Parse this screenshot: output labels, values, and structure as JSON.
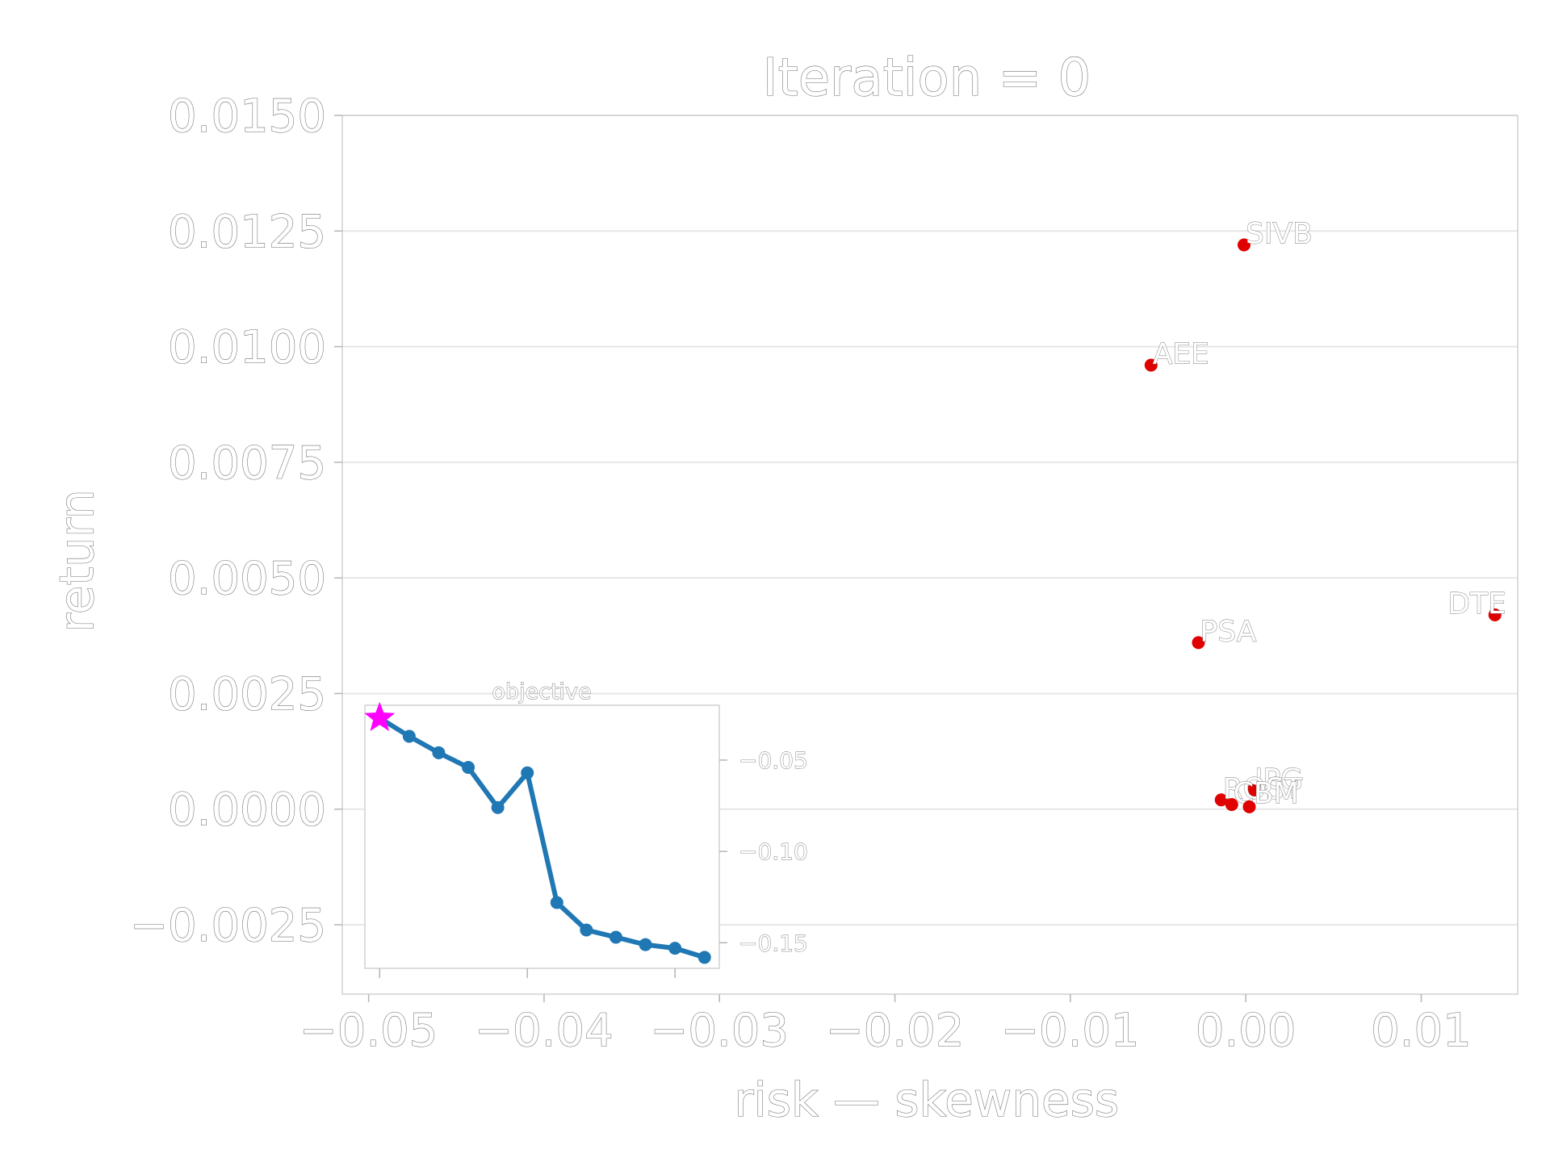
{
  "chart_data": [
    {
      "type": "scatter",
      "title": "Iteration = 0",
      "xlabel": "risk — skewness",
      "ylabel": "return",
      "xlim": [
        -0.0515,
        0.0155
      ],
      "ylim": [
        -0.004,
        0.015
      ],
      "xticks": [
        -0.05,
        -0.04,
        -0.03,
        -0.02,
        -0.01,
        0.0,
        0.01
      ],
      "xtick_labels": [
        "−0.05",
        "−0.04",
        "−0.03",
        "−0.02",
        "−0.01",
        "0.00",
        "0.01"
      ],
      "yticks": [
        -0.0025,
        0.0,
        0.0025,
        0.005,
        0.0075,
        0.01,
        0.0125,
        0.015
      ],
      "ytick_labels": [
        "−0.0025",
        "0.0000",
        "0.0025",
        "0.0050",
        "0.0075",
        "0.0100",
        "0.0125",
        "0.0150"
      ],
      "grid": "horizontal",
      "point_color": "#e00000",
      "points": [
        {
          "label": "SIVB",
          "x": -0.0001,
          "y": 0.0122
        },
        {
          "label": "AEE",
          "x": -0.0054,
          "y": 0.0096
        },
        {
          "label": "PSA",
          "x": -0.0027,
          "y": 0.0036
        },
        {
          "label": "DTE",
          "x": 0.0142,
          "y": 0.0042
        },
        {
          "label": "IPG",
          "x": 0.0004,
          "y": 0.0004
        },
        {
          "label": "ROST",
          "x": -0.0014,
          "y": 0.0002
        },
        {
          "label": "CBM",
          "x": -0.0008,
          "y": 0.0001
        },
        {
          "label": "",
          "x": 0.0002,
          "y": 5e-05
        }
      ]
    },
    {
      "type": "line",
      "title": "objective",
      "x": [
        0,
        1,
        2,
        3,
        4,
        5,
        6,
        7,
        8,
        9,
        10,
        11
      ],
      "y": [
        -0.027,
        -0.037,
        -0.046,
        -0.054,
        -0.076,
        -0.057,
        -0.128,
        -0.143,
        -0.147,
        -0.151,
        -0.153,
        -0.158
      ],
      "ylim": [
        -0.164,
        -0.02
      ],
      "xlim": [
        -0.5,
        11.5
      ],
      "yticks": [
        -0.05,
        -0.1,
        -0.15
      ],
      "ytick_labels": [
        "−0.05",
        "−0.10",
        "−0.15"
      ],
      "xticks": [
        0,
        5,
        10
      ],
      "line_color": "#1f77b4",
      "start_marker_color": "#ff00ff",
      "start_marker": "star"
    }
  ]
}
